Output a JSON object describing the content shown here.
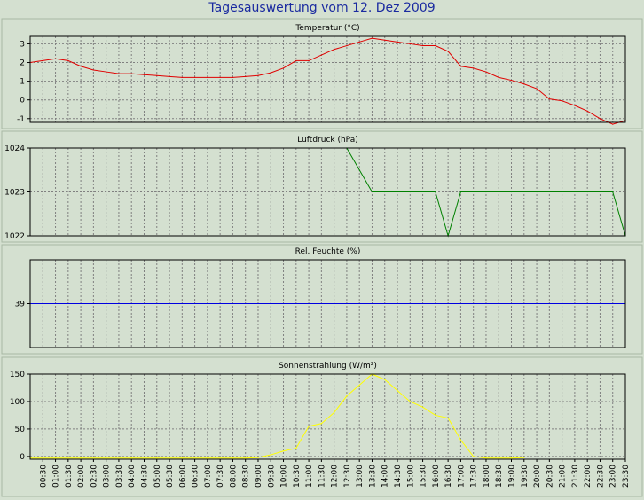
{
  "page": {
    "title": "Tagesauswertung vom 12. Dez 2009"
  },
  "colors": {
    "background": "#d4e0d0",
    "plot": "#000000",
    "grid": "#808080",
    "title": "#1a2aa0"
  },
  "chart_data": [
    {
      "type": "line",
      "title": "Temperatur (°C)",
      "ylim": [
        -1.2,
        3.4
      ],
      "yticks": [
        -1,
        0,
        1,
        2,
        3
      ],
      "color": "#e00000",
      "series": [
        {
          "x": [
            "00:00",
            "00:30",
            "01:00",
            "01:30",
            "02:00",
            "02:30",
            "03:00",
            "03:30",
            "04:00",
            "04:30",
            "05:00",
            "05:30",
            "06:00",
            "06:30",
            "07:00",
            "07:30",
            "08:00",
            "08:30",
            "09:00",
            "09:30",
            "10:00",
            "10:30",
            "11:00",
            "11:30",
            "12:00",
            "12:30",
            "13:00",
            "13:30",
            "14:00",
            "14:30",
            "15:00",
            "15:30",
            "16:00",
            "16:30",
            "17:00",
            "17:30",
            "18:00",
            "18:30",
            "19:00",
            "19:30",
            "20:00",
            "20:30",
            "21:00",
            "21:30",
            "22:00",
            "22:30",
            "23:00",
            "23:30"
          ],
          "values": [
            2.0,
            2.1,
            2.2,
            2.1,
            1.8,
            1.6,
            1.5,
            1.4,
            1.4,
            1.35,
            1.3,
            1.25,
            1.2,
            1.2,
            1.2,
            1.2,
            1.2,
            1.25,
            1.3,
            1.45,
            1.7,
            2.1,
            2.1,
            2.4,
            2.7,
            2.9,
            3.1,
            3.3,
            3.2,
            3.1,
            3.0,
            2.9,
            2.9,
            2.6,
            1.8,
            1.7,
            1.5,
            1.2,
            1.05,
            0.85,
            0.6,
            0.05,
            -0.05,
            -0.3,
            -0.6,
            -1.0,
            -1.3,
            -1.1
          ]
        }
      ]
    },
    {
      "type": "line",
      "title": "Luftdruck (hPa)",
      "ylim": [
        1022,
        1024
      ],
      "yticks": [
        1022,
        1023,
        1024
      ],
      "color": "#008000",
      "series": [
        {
          "x": [
            "12:30",
            "13:30",
            "14:00",
            "15:00",
            "16:00",
            "16:30",
            "17:00",
            "18:00",
            "19:00",
            "20:00",
            "21:00",
            "22:00",
            "23:00",
            "23:30"
          ],
          "values": [
            1024,
            1023,
            1023,
            1023,
            1023,
            1022,
            1023,
            1023,
            1023,
            1023,
            1023,
            1023,
            1023,
            1022
          ]
        }
      ]
    },
    {
      "type": "line",
      "title": "Rel. Feuchte (%)",
      "ylim": [
        34,
        44
      ],
      "yticks": [
        39
      ],
      "color": "#0000e0",
      "series": [
        {
          "x": [
            "00:00",
            "23:30"
          ],
          "values": [
            39,
            39
          ]
        }
      ]
    },
    {
      "type": "line",
      "title": "Sonnenstrahlung (W/m²)",
      "ylim": [
        -5,
        150
      ],
      "yticks": [
        0,
        50,
        100,
        150
      ],
      "color": "#ffff00",
      "xticks": [
        "00:30",
        "01:00",
        "01:30",
        "02:00",
        "02:30",
        "03:00",
        "03:30",
        "04:00",
        "04:30",
        "05:00",
        "05:30",
        "06:00",
        "06:30",
        "07:00",
        "07:30",
        "08:00",
        "08:30",
        "09:00",
        "09:30",
        "10:00",
        "10:30",
        "11:00",
        "11:30",
        "12:00",
        "12:30",
        "13:00",
        "13:30",
        "14:00",
        "14:30",
        "15:00",
        "15:30",
        "16:00",
        "16:30",
        "17:00",
        "17:30",
        "18:00",
        "18:30",
        "19:00",
        "19:30",
        "20:00",
        "20:30",
        "21:00",
        "21:30",
        "22:00",
        "22:30",
        "23:00",
        "23:30"
      ],
      "series": [
        {
          "x": [
            "00:00",
            "01:00",
            "02:00",
            "03:00",
            "04:00",
            "05:00",
            "06:00",
            "07:00",
            "08:00",
            "08:30",
            "09:00",
            "09:30",
            "10:00",
            "10:30",
            "11:00",
            "11:30",
            "12:00",
            "12:30",
            "13:00",
            "13:30",
            "14:00",
            "14:30",
            "15:00",
            "15:30",
            "16:00",
            "16:30",
            "17:00",
            "17:30",
            "18:00",
            "18:30",
            "19:00",
            "19:30"
          ],
          "values": [
            -3,
            -3,
            -3,
            -3,
            -3,
            -3,
            -3,
            -3,
            -3,
            -3,
            -2,
            3,
            10,
            15,
            55,
            60,
            80,
            110,
            130,
            150,
            140,
            120,
            100,
            90,
            75,
            70,
            30,
            0,
            -3,
            -3,
            -3,
            -2
          ]
        }
      ]
    }
  ]
}
